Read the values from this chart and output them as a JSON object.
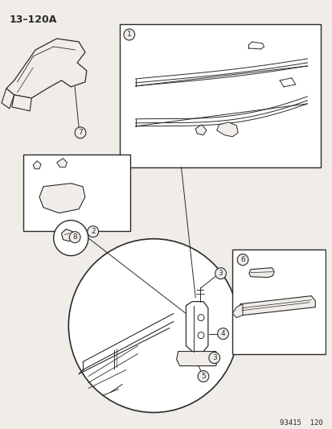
{
  "title": "13–120A",
  "footer": "93415  120",
  "bg_color": "#f0ede8",
  "line_color": "#2a2a2a",
  "white": "#ffffff"
}
